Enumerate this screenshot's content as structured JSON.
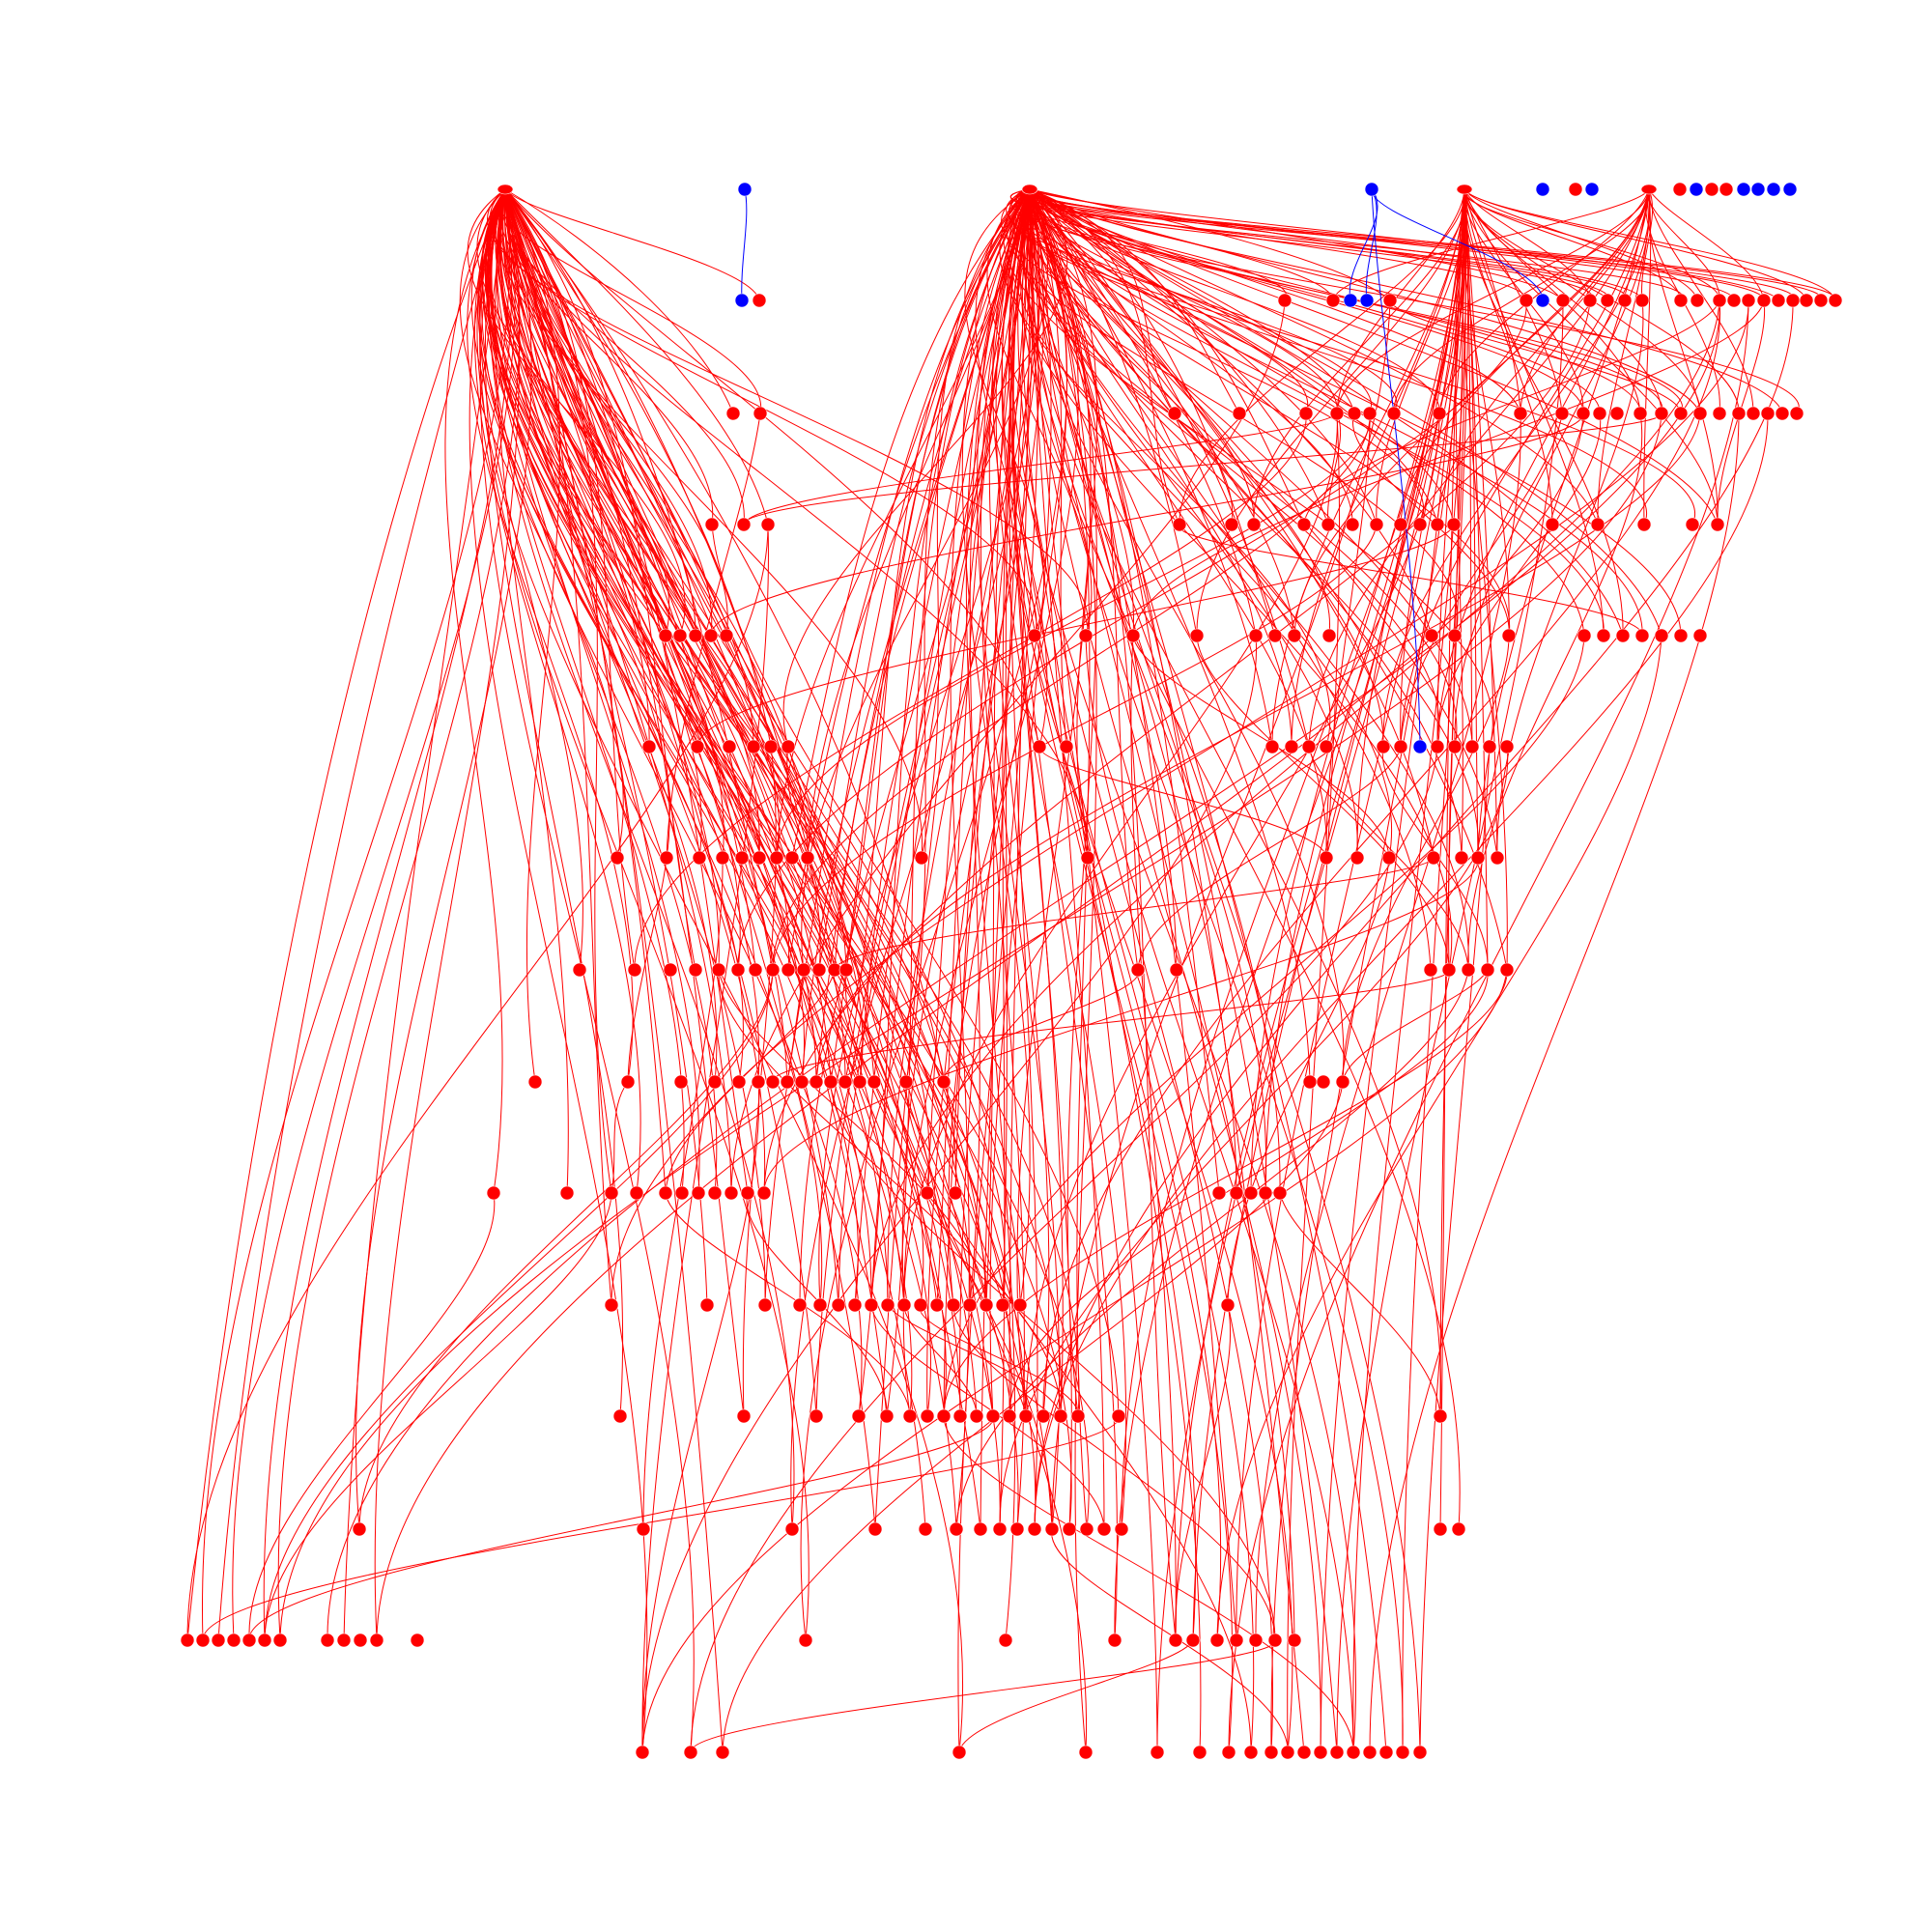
{
  "diagram": {
    "type": "layered-directed-graph",
    "colors": {
      "primary": "#ff0000",
      "secondary": "#0000ff",
      "background": "#ffffff"
    },
    "node_labels": "unreadable",
    "layer_node_counts": [
      17,
      25,
      25,
      19,
      23,
      20,
      18,
      20,
      19,
      18,
      18,
      18,
      17,
      22,
      19
    ],
    "secondary_node_count": 15,
    "primary_hubs": 2,
    "description_visible_text": []
  }
}
